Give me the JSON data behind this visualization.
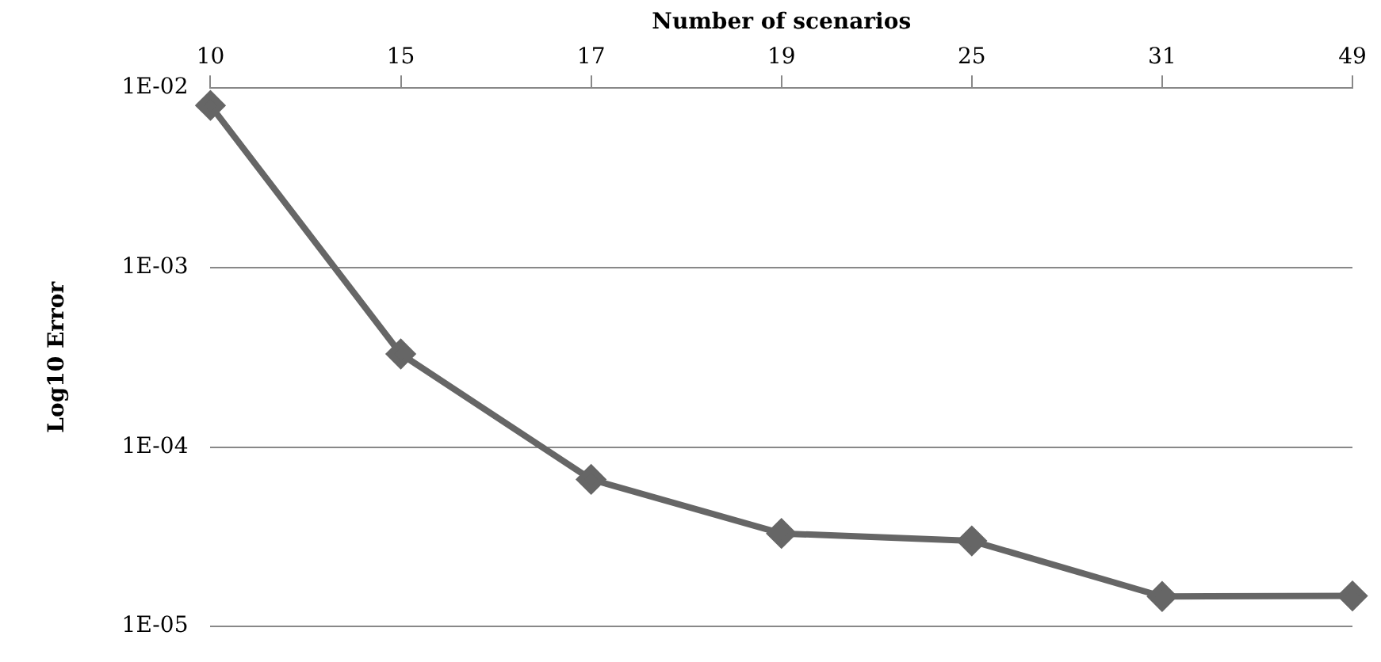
{
  "chart_data": {
    "type": "line",
    "xlabel": "Number of scenarios",
    "ylabel": "Log10 Error",
    "categories": [
      "10",
      "15",
      "17",
      "19",
      "25",
      "31",
      "49"
    ],
    "series": [
      {
        "color": "#666666",
        "values": [
          0.008,
          0.00033,
          6.6e-05,
          3.3e-05,
          3e-05,
          1.47e-05,
          1.48e-05
        ]
      }
    ],
    "log": "y",
    "ylim": [
      1e-05,
      0.01
    ],
    "yticks": [
      {
        "value": 1e-05,
        "label": "1E-05"
      },
      {
        "value": 0.0001,
        "label": "1E-04"
      },
      {
        "value": 0.001,
        "label": "1E-03"
      },
      {
        "value": 0.01,
        "label": "1E-02"
      }
    ],
    "grid": "y",
    "legend": false,
    "marker": "diamond",
    "line_style": "solid"
  }
}
